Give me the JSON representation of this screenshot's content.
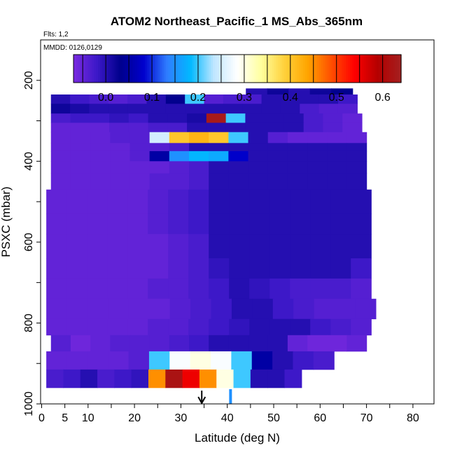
{
  "chart_data": {
    "type": "heatmap",
    "title": "ATOM2 Northeast_Pacific_1 MS_Abs_365nm",
    "flights_label": "Flts: 1,2",
    "dates_label": "MMDD: 0126,0129",
    "xlabel": "Latitude (deg N)",
    "ylabel": "PSXC (mbar)",
    "xlim": [
      0,
      85
    ],
    "ylim": [
      1000,
      100
    ],
    "x_ticks": [
      0,
      5,
      10,
      20,
      30,
      40,
      50,
      60,
      70,
      80
    ],
    "y_ticks": [
      200,
      400,
      600,
      800,
      1000
    ],
    "colorbar": {
      "range": [
        -0.07,
        0.64
      ],
      "ticks": [
        0.0,
        0.1,
        0.2,
        0.3,
        0.4,
        0.5,
        0.6
      ],
      "tick_labels": [
        "0.0",
        "0.1",
        "0.2",
        "0.3",
        "0.4",
        "0.5",
        "0.6"
      ],
      "colors": [
        "#7a2ae0",
        "#3c18c8",
        "#00008c",
        "#0000cd",
        "#2f7dff",
        "#00b9ff",
        "#bfe6ff",
        "#ffffff",
        "#ffffa0",
        "#ffd23c",
        "#ffa500",
        "#ff5000",
        "#ff0000",
        "#b40000",
        "#a42020"
      ]
    },
    "layers": [
      {
        "p_top": 220,
        "p_bot": 235,
        "x0": 44,
        "x1": 67,
        "values": [
          0.0,
          0.02,
          0.0,
          0.02,
          0.03
        ]
      },
      {
        "p_top": 235,
        "p_bot": 258,
        "x0": 2,
        "x1": 68,
        "values": [
          0.0,
          -0.02,
          -0.03,
          -0.04,
          -0.03,
          0.0,
          0.03,
          0.2,
          -0.04,
          -0.03,
          -0.03,
          0.0,
          0.0,
          0.0,
          0.0,
          -0.02
        ]
      },
      {
        "p_top": 258,
        "p_bot": 282,
        "x0": 2,
        "x1": 68,
        "values": [
          0.02,
          0.01,
          0.0,
          0.0,
          0.0,
          0.0,
          0.0,
          0.0,
          0.0,
          0.0,
          0.0,
          0.0,
          0.0,
          -0.03,
          -0.04,
          -0.04
        ]
      },
      {
        "p_top": 282,
        "p_bot": 305,
        "x0": 2,
        "x1": 69,
        "values": [
          -0.03,
          -0.02,
          -0.02,
          -0.01,
          -0.02,
          0.0,
          0.0,
          0.01,
          0.63,
          0.2,
          0.0,
          0.0,
          0.0,
          -0.03,
          -0.04,
          -0.05
        ]
      },
      {
        "p_top": 305,
        "p_bot": 328,
        "x0": 2,
        "x1": 69,
        "values": [
          -0.05,
          -0.05,
          -0.05,
          -0.04,
          -0.04,
          -0.03,
          -0.03,
          0.0,
          0.0,
          0.0,
          0.0,
          0.0,
          0.0,
          -0.03,
          -0.04,
          -0.05
        ]
      },
      {
        "p_top": 328,
        "p_bot": 355,
        "x0": 2,
        "x1": 70,
        "values": [
          -0.05,
          -0.05,
          -0.05,
          -0.04,
          -0.04,
          0.25,
          0.4,
          0.42,
          0.4,
          0.2,
          0.0,
          -0.04,
          -0.05,
          -0.05,
          -0.05,
          -0.05
        ]
      },
      {
        "p_top": 355,
        "p_bot": 375,
        "x0": 2,
        "x1": 70,
        "values": [
          -0.05,
          -0.05,
          -0.05,
          -0.05,
          -0.04,
          -0.04,
          -0.03,
          0.0,
          0.0,
          0.0,
          0.0,
          0.0,
          0.0,
          0.0,
          0.0,
          0.0
        ]
      },
      {
        "p_top": 375,
        "p_bot": 400,
        "x0": 2,
        "x1": 70,
        "values": [
          -0.05,
          -0.05,
          -0.05,
          -0.05,
          -0.04,
          0.05,
          0.15,
          0.18,
          0.17,
          0.08,
          0.0,
          0.0,
          0.0,
          0.0,
          0.0,
          0.0
        ]
      },
      {
        "p_top": 400,
        "p_bot": 430,
        "x0": 2,
        "x1": 70,
        "values": [
          -0.05,
          -0.05,
          -0.05,
          -0.05,
          -0.05,
          -0.05,
          -0.04,
          -0.03,
          0.0,
          0.0,
          0.0,
          0.0,
          0.0,
          0.0,
          0.0,
          0.0
        ]
      },
      {
        "p_top": 430,
        "p_bot": 470,
        "x0": 2,
        "x1": 70,
        "values": [
          -0.05,
          -0.05,
          -0.05,
          -0.05,
          -0.05,
          -0.04,
          -0.04,
          -0.03,
          0.0,
          0.0,
          0.0,
          0.0,
          0.0,
          0.0,
          0.0,
          0.0
        ]
      },
      {
        "p_top": 470,
        "p_bot": 530,
        "x0": 1,
        "x1": 71,
        "values": [
          -0.05,
          -0.05,
          -0.05,
          -0.05,
          -0.05,
          -0.04,
          -0.03,
          -0.02,
          0.0,
          0.0,
          0.0,
          0.0,
          0.0,
          0.0,
          0.0,
          0.0
        ]
      },
      {
        "p_top": 530,
        "p_bot": 580,
        "x0": 1,
        "x1": 71,
        "values": [
          -0.05,
          -0.05,
          -0.05,
          -0.05,
          -0.05,
          -0.04,
          -0.03,
          -0.02,
          0.0,
          0.0,
          0.0,
          0.0,
          0.0,
          0.0,
          0.0,
          0.0
        ]
      },
      {
        "p_top": 580,
        "p_bot": 640,
        "x0": 1,
        "x1": 71,
        "values": [
          -0.05,
          -0.05,
          -0.05,
          -0.05,
          -0.05,
          -0.05,
          -0.04,
          -0.03,
          0.0,
          0.0,
          0.0,
          0.0,
          0.0,
          0.0,
          0.0,
          0.0
        ]
      },
      {
        "p_top": 640,
        "p_bot": 690,
        "x0": 1,
        "x1": 71,
        "values": [
          -0.05,
          -0.05,
          -0.05,
          -0.05,
          -0.05,
          -0.05,
          -0.04,
          -0.03,
          -0.01,
          0.0,
          0.0,
          0.0,
          0.0,
          0.0,
          0.0,
          -0.02
        ]
      },
      {
        "p_top": 690,
        "p_bot": 740,
        "x0": 1,
        "x1": 71,
        "values": [
          -0.05,
          -0.05,
          -0.05,
          -0.05,
          -0.05,
          -0.04,
          -0.04,
          -0.03,
          -0.02,
          0.0,
          -0.01,
          -0.02,
          -0.03,
          -0.03,
          -0.03,
          -0.04
        ]
      },
      {
        "p_top": 740,
        "p_bot": 790,
        "x0": 1,
        "x1": 72,
        "values": [
          -0.05,
          -0.05,
          -0.05,
          -0.05,
          -0.05,
          -0.05,
          -0.04,
          -0.03,
          -0.02,
          0.0,
          0.0,
          -0.02,
          -0.03,
          -0.04,
          -0.04,
          -0.04
        ]
      },
      {
        "p_top": 790,
        "p_bot": 830,
        "x0": 1,
        "x1": 71,
        "values": [
          -0.05,
          -0.05,
          -0.05,
          -0.05,
          -0.05,
          -0.04,
          -0.04,
          -0.03,
          -0.02,
          -0.01,
          0.0,
          0.0,
          0.0,
          -0.02,
          -0.03,
          -0.04
        ]
      },
      {
        "p_top": 830,
        "p_bot": 870,
        "x0": 2,
        "x1": 70,
        "values": [
          -0.04,
          -0.06,
          -0.05,
          -0.04,
          -0.04,
          -0.04,
          -0.03,
          -0.02,
          0.0,
          0.0,
          0.0,
          0.0,
          -0.05,
          -0.06,
          -0.06,
          -0.05
        ]
      },
      {
        "p_top": 870,
        "p_bot": 915,
        "x0": 1,
        "x1": 63,
        "values": [
          -0.05,
          -0.05,
          -0.05,
          -0.05,
          -0.04,
          0.2,
          0.28,
          0.3,
          0.28,
          0.2,
          0.05,
          0.0,
          -0.02,
          -0.03
        ]
      },
      {
        "p_top": 915,
        "p_bot": 960,
        "x0": 1,
        "x1": 56,
        "values": [
          -0.03,
          -0.02,
          0.0,
          -0.03,
          -0.02,
          -0.01,
          0.45,
          0.62,
          0.55,
          0.45,
          0.3,
          0.2,
          0.0,
          0.0,
          -0.02
        ]
      }
    ],
    "markers": [
      {
        "type": "arrow",
        "x": 34.5
      },
      {
        "type": "bar",
        "x": 40.7
      }
    ]
  }
}
